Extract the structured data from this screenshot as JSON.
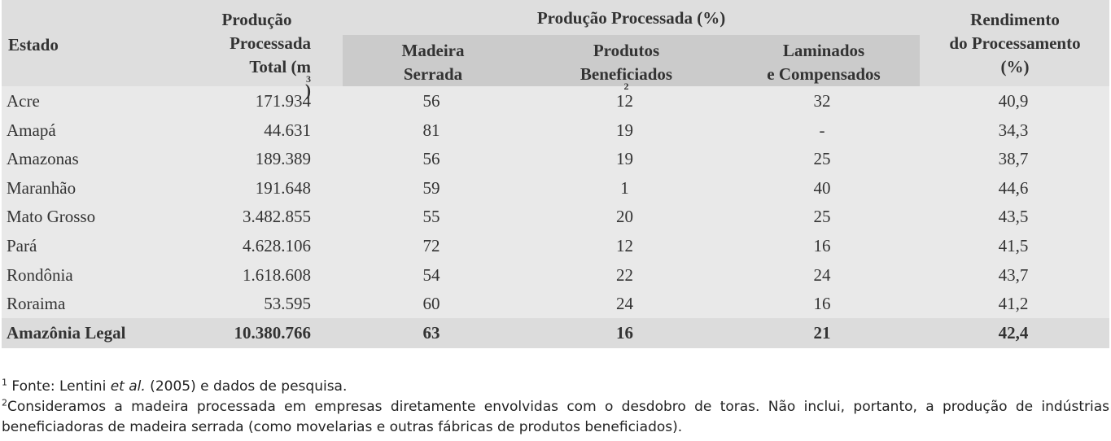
{
  "headers": {
    "estado": "Estado",
    "total": [
      "Produção",
      "Processada",
      "Total (m"
    ],
    "total_unit_sup": "3",
    "total_close": ")",
    "group": "Produção Processada (%)",
    "madeira": [
      "Madeira",
      "Serrada"
    ],
    "produtos": [
      "Produtos",
      "Beneficiados"
    ],
    "produtos_sup": "2",
    "laminados": [
      "Laminados",
      "e Compensados"
    ],
    "rendimento": [
      "Rendimento",
      "do Processamento",
      "(%)"
    ]
  },
  "rows": [
    {
      "estado": "Acre",
      "total": "171.934",
      "madeira": "56",
      "produtos": "12",
      "laminados": "32",
      "rendimento": "40,9"
    },
    {
      "estado": "Amapá",
      "total": "44.631",
      "madeira": "81",
      "produtos": "19",
      "laminados": "-",
      "rendimento": "34,3"
    },
    {
      "estado": "Amazonas",
      "total": "189.389",
      "madeira": "56",
      "produtos": "19",
      "laminados": "25",
      "rendimento": "38,7"
    },
    {
      "estado": "Maranhão",
      "total": "191.648",
      "madeira": "59",
      "produtos": "1",
      "laminados": "40",
      "rendimento": "44,6"
    },
    {
      "estado": "Mato Grosso",
      "total": "3.482.855",
      "madeira": "55",
      "produtos": "20",
      "laminados": "25",
      "rendimento": "43,5"
    },
    {
      "estado": "Pará",
      "total": "4.628.106",
      "madeira": "72",
      "produtos": "12",
      "laminados": "16",
      "rendimento": "41,5"
    },
    {
      "estado": "Rondônia",
      "total": "1.618.608",
      "madeira": "54",
      "produtos": "22",
      "laminados": "24",
      "rendimento": "43,7"
    },
    {
      "estado": "Roraima",
      "total": "53.595",
      "madeira": "60",
      "produtos": "24",
      "laminados": "16",
      "rendimento": "41,2"
    }
  ],
  "total_row": {
    "estado": "Amazônia Legal",
    "total": "10.380.766",
    "madeira": "63",
    "produtos": "16",
    "laminados": "21",
    "rendimento": "42,4"
  },
  "notes": {
    "n1_mark": "1",
    "n1_a": " Fonte: Lentini ",
    "n1_em": "et al.",
    "n1_b": " (2005) e dados de pesquisa.",
    "n2_mark": "2",
    "n2_text": "Consideramos a madeira processada em empresas diretamente envolvidas com o desdobro de toras. Não inclui, portanto, a produção de indústrias beneficiadoras de madeira serrada (como movelarias e outras fábricas de produtos beneficiados)."
  }
}
